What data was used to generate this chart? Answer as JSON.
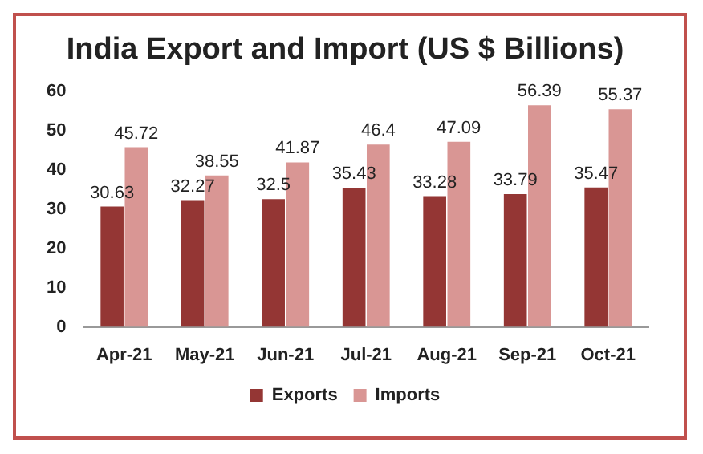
{
  "chart_data": {
    "type": "bar",
    "title": "India Export and Import (US $ Billions)",
    "categories": [
      "Apr-21",
      "May-21",
      "Jun-21",
      "Jul-21",
      "Aug-21",
      "Sep-21",
      "Oct-21"
    ],
    "series": [
      {
        "name": "Exports",
        "color": "#943634",
        "values": [
          30.63,
          32.27,
          32.5,
          35.43,
          33.28,
          33.79,
          35.47
        ]
      },
      {
        "name": "Imports",
        "color": "#d99694",
        "values": [
          45.72,
          38.55,
          41.87,
          46.4,
          47.09,
          56.39,
          55.37
        ]
      }
    ],
    "ylim": [
      0,
      60
    ],
    "yticks": [
      0,
      10,
      20,
      30,
      40,
      50,
      60
    ],
    "grid": false,
    "legend": "bottom",
    "data_labels": true
  }
}
